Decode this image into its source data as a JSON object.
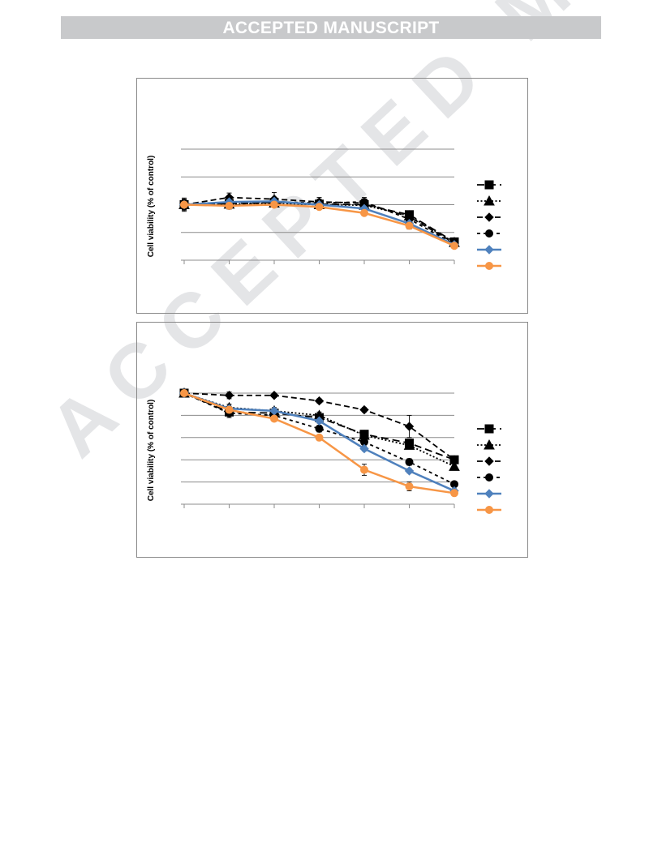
{
  "header": {
    "banner_text": "ACCEPTED MANUSCRIPT",
    "watermark_text": "ACCEPTED MANUSCRIPT"
  },
  "chart_data": [
    {
      "type": "line",
      "title": "",
      "xlabel": "",
      "ylabel": "Cell viability (% of control)",
      "ylim": [
        0,
        200
      ],
      "grid": true,
      "legend_position": "right",
      "x": [
        0,
        1,
        2,
        3,
        4,
        5,
        6
      ],
      "series": [
        {
          "marker": "square",
          "line": "dashed-long",
          "color": "#000000",
          "values": [
            100,
            102,
            104,
            101,
            100,
            82,
            33
          ],
          "errors": [
            8,
            5,
            6,
            6,
            7,
            6,
            3
          ]
        },
        {
          "marker": "triangle",
          "line": "dotted",
          "color": "#000000",
          "values": [
            100,
            101,
            103,
            100,
            99,
            80,
            32
          ],
          "errors": [
            9,
            6,
            7,
            5,
            6,
            6,
            3
          ]
        },
        {
          "marker": "diamond",
          "line": "dashed",
          "color": "#000000",
          "values": [
            100,
            113,
            110,
            105,
            103,
            78,
            31
          ],
          "errors": [
            10,
            8,
            12,
            8,
            7,
            7,
            3
          ]
        },
        {
          "marker": "circle",
          "line": "dashed-short",
          "color": "#000000",
          "values": [
            100,
            98,
            105,
            103,
            105,
            74,
            29
          ],
          "errors": [
            12,
            6,
            8,
            7,
            8,
            8,
            3
          ]
        },
        {
          "marker": "diamond",
          "line": "solid",
          "color": "#4f81bd",
          "values": [
            100,
            105,
            106,
            100,
            93,
            66,
            28
          ],
          "errors": [
            4,
            4,
            5,
            4,
            4,
            5,
            2
          ]
        },
        {
          "marker": "circle",
          "line": "solid",
          "color": "#f79646",
          "values": [
            100,
            98,
            100,
            96,
            85,
            62,
            26
          ],
          "errors": [
            4,
            4,
            4,
            4,
            4,
            6,
            2
          ]
        }
      ]
    },
    {
      "type": "line",
      "title": "",
      "xlabel": "",
      "ylabel": "Cell viability (% of control)",
      "ylim": [
        0,
        100
      ],
      "grid": true,
      "legend_position": "right",
      "x": [
        0,
        1,
        2,
        3,
        4,
        5,
        6
      ],
      "series": [
        {
          "marker": "square",
          "line": "dashed-long",
          "color": "#000000",
          "values": [
            100,
            83,
            82,
            78,
            63,
            55,
            40
          ],
          "errors": [
            1,
            3,
            3,
            3,
            3,
            3,
            3
          ]
        },
        {
          "marker": "triangle",
          "line": "dotted",
          "color": "#000000",
          "values": [
            100,
            87,
            84,
            80,
            62,
            53,
            34
          ],
          "errors": [
            1,
            3,
            3,
            3,
            3,
            3,
            3
          ]
        },
        {
          "marker": "diamond",
          "line": "dashed",
          "color": "#000000",
          "values": [
            100,
            98,
            98,
            93,
            85,
            70,
            40
          ],
          "errors": [
            1,
            3,
            2,
            2,
            2,
            10,
            2
          ]
        },
        {
          "marker": "circle",
          "line": "dashed-short",
          "color": "#000000",
          "values": [
            100,
            82,
            80,
            68,
            56,
            38,
            18
          ],
          "errors": [
            1,
            4,
            3,
            3,
            4,
            3,
            2
          ]
        },
        {
          "marker": "diamond",
          "line": "solid",
          "color": "#4f81bd",
          "values": [
            100,
            86,
            84,
            75,
            50,
            30,
            12
          ],
          "errors": [
            1,
            2,
            2,
            2,
            2,
            2,
            2
          ]
        },
        {
          "marker": "circle",
          "line": "solid",
          "color": "#f79646",
          "values": [
            100,
            85,
            77,
            60,
            31,
            16,
            10
          ],
          "errors": [
            1,
            2,
            2,
            2,
            5,
            4,
            2
          ]
        }
      ]
    }
  ]
}
